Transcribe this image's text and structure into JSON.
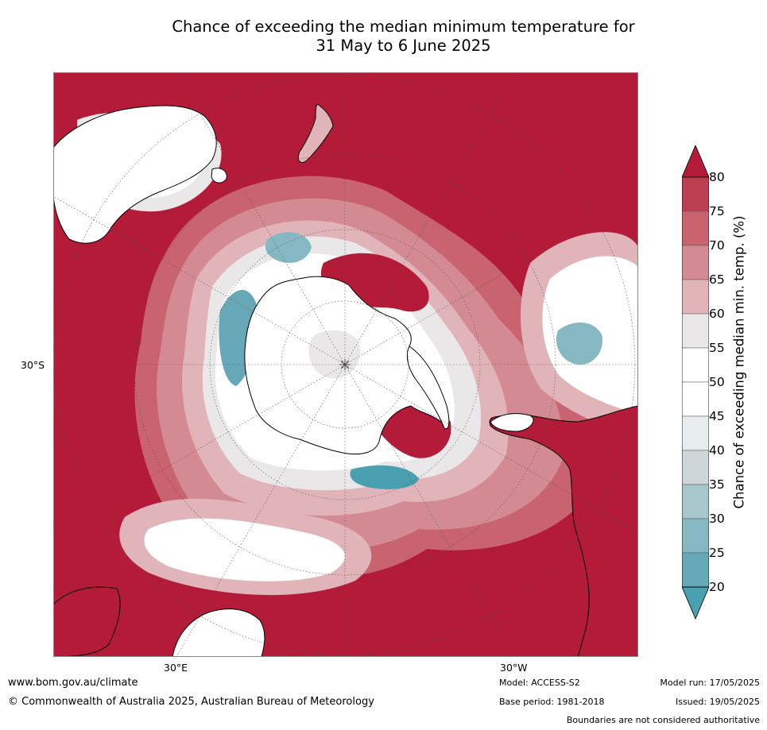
{
  "title_line1": "Chance of exceeding the median minimum temperature for",
  "title_line2": "31 May to 6 June 2025",
  "map": {
    "lat_label": "30°S",
    "lon_label_left": "30°E",
    "lon_label_right": "30°W",
    "land_outline_color": "#000000",
    "graticule_color": "#555555"
  },
  "colorbar": {
    "title": "Chance of exceeding median min. temp. (%)",
    "ticks": [
      "80",
      "75",
      "70",
      "65",
      "60",
      "55",
      "50",
      "45",
      "40",
      "35",
      "30",
      "25",
      "20"
    ],
    "bins": [
      {
        "range": "above 80",
        "color": "#b31b39"
      },
      {
        "range": "75-80",
        "color": "#bb3e51"
      },
      {
        "range": "70-75",
        "color": "#c9636f"
      },
      {
        "range": "65-70",
        "color": "#d48a92"
      },
      {
        "range": "60-65",
        "color": "#e0b4b9"
      },
      {
        "range": "55-60",
        "color": "#e9e7e7"
      },
      {
        "range": "50-55",
        "color": "#ffffff"
      },
      {
        "range": "45-50",
        "color": "#ffffff"
      },
      {
        "range": "40-45",
        "color": "#e7ecee"
      },
      {
        "range": "35-40",
        "color": "#cfd6d9"
      },
      {
        "range": "30-35",
        "color": "#a8c7cb"
      },
      {
        "range": "25-30",
        "color": "#86b8c4"
      },
      {
        "range": "20-25",
        "color": "#66a8b8"
      },
      {
        "range": "below 20",
        "color": "#4a9fb0"
      }
    ]
  },
  "footer": {
    "url": "www.bom.gov.au/climate",
    "copyright": "© Commonwealth of Australia 2025, Australian Bureau of Meteorology",
    "model": "Model: ACCESS-S2",
    "base_period": "Base period: 1981-2018",
    "model_run": "Model run: 17/05/2025",
    "issued": "Issued: 19/05/2025",
    "disclaimer": "Boundaries are not considered authoritative"
  }
}
